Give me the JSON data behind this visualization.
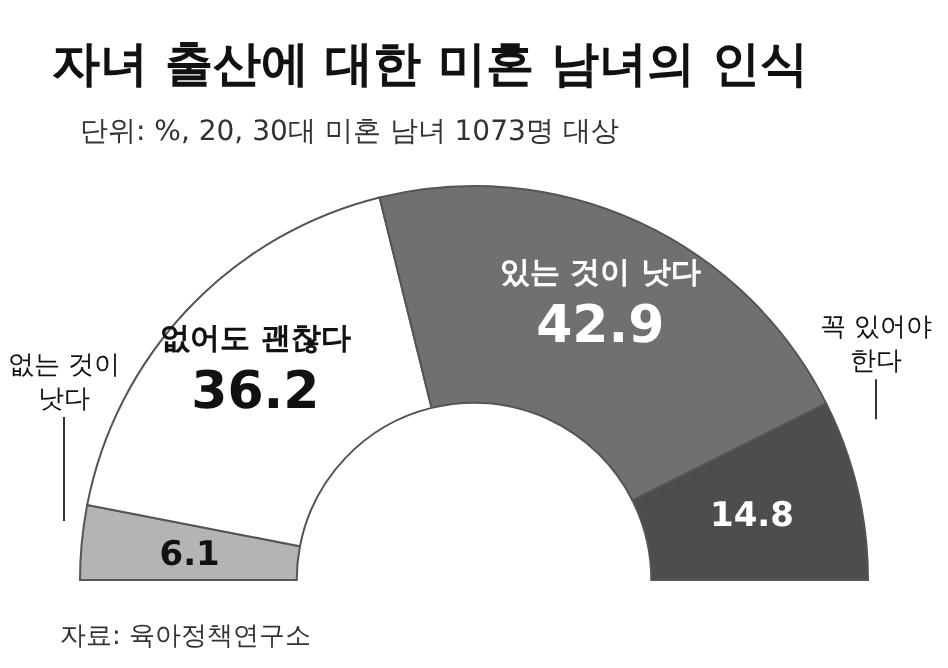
{
  "chart_data": {
    "type": "donut",
    "title": "자녀 출산에 대한 미혼 남녀의 인식",
    "subtitle": "단위: %, 20, 30대 미혼 남녀 1073명 대상",
    "categories": [
      "없는 것이 낫다",
      "없어도 괜찮다",
      "있는 것이 낫다",
      "꼭 있어야 한다"
    ],
    "values": [
      6.1,
      36.2,
      42.9,
      14.8
    ],
    "colors": [
      "#b4b4b4",
      "#ffffff",
      "#707070",
      "#4d4d4d"
    ],
    "data_labels": true,
    "legend": false,
    "annotations": [
      "자료: 육아정책연구소"
    ]
  }
}
